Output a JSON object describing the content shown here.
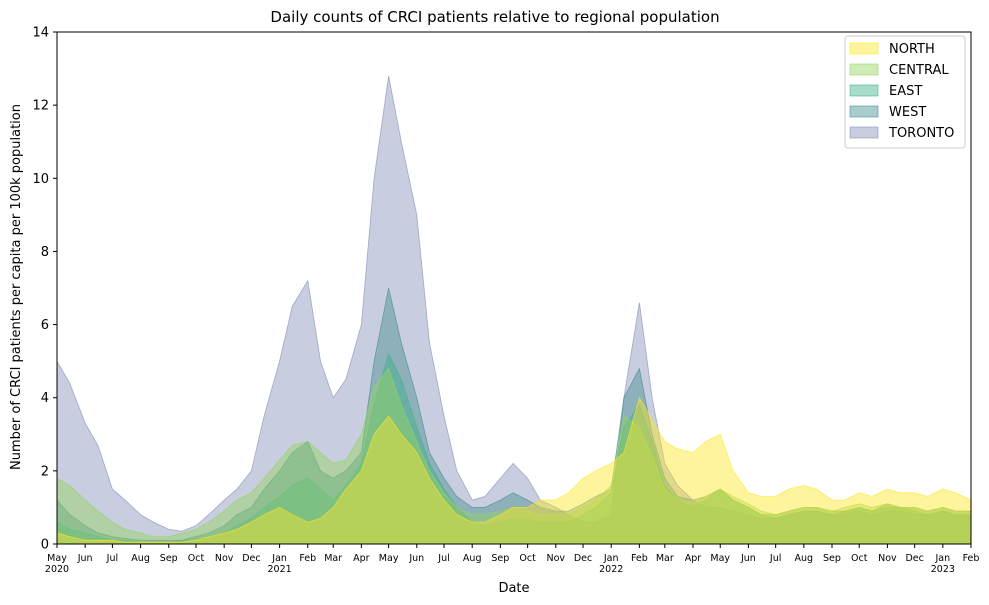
{
  "chart_data": {
    "type": "area",
    "title": "Daily counts of CRCI patients relative to regional population",
    "xlabel": "Date",
    "ylabel": "Number of CRCI patients per capita per 100k population",
    "ylim": [
      0,
      14
    ],
    "yticks": [
      "0",
      "2",
      "4",
      "6",
      "8",
      "10",
      "12",
      "14"
    ],
    "xlim": [
      "2020-05-01",
      "2023-02-01"
    ],
    "xticks": [
      {
        "date": "2020-05-01",
        "label": "May",
        "year": "2020"
      },
      {
        "date": "2020-06-01",
        "label": "Jun",
        "year": ""
      },
      {
        "date": "2020-07-01",
        "label": "Jul",
        "year": ""
      },
      {
        "date": "2020-08-01",
        "label": "Aug",
        "year": ""
      },
      {
        "date": "2020-09-01",
        "label": "Sep",
        "year": ""
      },
      {
        "date": "2020-10-01",
        "label": "Oct",
        "year": ""
      },
      {
        "date": "2020-11-01",
        "label": "Nov",
        "year": ""
      },
      {
        "date": "2020-12-01",
        "label": "Dec",
        "year": ""
      },
      {
        "date": "2021-01-01",
        "label": "Jan",
        "year": "2021"
      },
      {
        "date": "2021-02-01",
        "label": "Feb",
        "year": ""
      },
      {
        "date": "2021-03-01",
        "label": "Mar",
        "year": ""
      },
      {
        "date": "2021-04-01",
        "label": "Apr",
        "year": ""
      },
      {
        "date": "2021-05-01",
        "label": "May",
        "year": ""
      },
      {
        "date": "2021-06-01",
        "label": "Jun",
        "year": ""
      },
      {
        "date": "2021-07-01",
        "label": "Jul",
        "year": ""
      },
      {
        "date": "2021-08-01",
        "label": "Aug",
        "year": ""
      },
      {
        "date": "2021-09-01",
        "label": "Sep",
        "year": ""
      },
      {
        "date": "2021-10-01",
        "label": "Oct",
        "year": ""
      },
      {
        "date": "2021-11-01",
        "label": "Nov",
        "year": ""
      },
      {
        "date": "2021-12-01",
        "label": "Dec",
        "year": ""
      },
      {
        "date": "2022-01-01",
        "label": "Jan",
        "year": "2022"
      },
      {
        "date": "2022-02-01",
        "label": "Feb",
        "year": ""
      },
      {
        "date": "2022-03-01",
        "label": "Mar",
        "year": ""
      },
      {
        "date": "2022-04-01",
        "label": "Apr",
        "year": ""
      },
      {
        "date": "2022-05-01",
        "label": "May",
        "year": ""
      },
      {
        "date": "2022-06-01",
        "label": "Jun",
        "year": ""
      },
      {
        "date": "2022-07-01",
        "label": "Jul",
        "year": ""
      },
      {
        "date": "2022-08-01",
        "label": "Aug",
        "year": ""
      },
      {
        "date": "2022-09-01",
        "label": "Sep",
        "year": ""
      },
      {
        "date": "2022-10-01",
        "label": "Oct",
        "year": ""
      },
      {
        "date": "2022-11-01",
        "label": "Nov",
        "year": ""
      },
      {
        "date": "2022-12-01",
        "label": "Dec",
        "year": ""
      },
      {
        "date": "2023-01-01",
        "label": "Jan",
        "year": "2023"
      },
      {
        "date": "2023-02-01",
        "label": "Feb",
        "year": ""
      }
    ],
    "legend_position": "top-right",
    "grid": false,
    "series": [
      {
        "name": "TORONTO",
        "color": "#8591b8",
        "x": [
          "2020-05-01",
          "2020-05-15",
          "2020-06-01",
          "2020-06-15",
          "2020-07-01",
          "2020-07-15",
          "2020-08-01",
          "2020-08-15",
          "2020-09-01",
          "2020-09-15",
          "2020-10-01",
          "2020-10-15",
          "2020-11-01",
          "2020-11-15",
          "2020-12-01",
          "2020-12-15",
          "2021-01-01",
          "2021-01-15",
          "2021-02-01",
          "2021-02-15",
          "2021-03-01",
          "2021-03-15",
          "2021-04-01",
          "2021-04-15",
          "2021-05-01",
          "2021-05-15",
          "2021-06-01",
          "2021-06-15",
          "2021-07-01",
          "2021-07-15",
          "2021-08-01",
          "2021-08-15",
          "2021-09-01",
          "2021-09-15",
          "2021-10-01",
          "2021-10-15",
          "2021-11-01",
          "2021-11-15",
          "2021-12-01",
          "2021-12-15",
          "2022-01-01",
          "2022-01-15",
          "2022-02-01",
          "2022-02-15",
          "2022-03-01",
          "2022-03-15",
          "2022-04-01",
          "2022-04-15",
          "2022-05-01",
          "2022-05-15",
          "2022-06-01",
          "2022-06-15",
          "2022-07-01",
          "2022-07-15",
          "2022-08-01",
          "2022-08-15",
          "2022-09-01",
          "2022-09-15",
          "2022-10-01",
          "2022-10-15",
          "2022-11-01",
          "2022-11-15",
          "2022-12-01",
          "2022-12-15",
          "2023-01-01",
          "2023-01-15",
          "2023-02-01"
        ],
        "values": [
          5.0,
          4.4,
          3.3,
          2.7,
          1.5,
          1.2,
          0.8,
          0.6,
          0.4,
          0.35,
          0.5,
          0.8,
          1.2,
          1.5,
          2.0,
          3.5,
          5.0,
          6.5,
          7.2,
          5.0,
          4.0,
          4.5,
          6.0,
          10.0,
          12.8,
          11.0,
          9.0,
          5.5,
          3.5,
          2.0,
          1.2,
          1.3,
          1.8,
          2.2,
          1.8,
          1.2,
          1.0,
          0.8,
          0.6,
          0.6,
          0.8,
          4.0,
          6.6,
          4.0,
          2.2,
          1.6,
          1.2,
          1.0,
          1.0,
          0.9,
          0.8,
          0.7,
          0.7,
          0.8,
          0.9,
          0.9,
          0.8,
          0.9,
          0.9,
          0.8,
          0.9,
          0.9,
          0.8,
          0.8,
          0.9,
          0.8,
          0.8
        ]
      },
      {
        "name": "WEST",
        "color": "#448f8f",
        "x": [
          "2020-05-01",
          "2020-05-15",
          "2020-06-01",
          "2020-06-15",
          "2020-07-01",
          "2020-07-15",
          "2020-08-01",
          "2020-08-15",
          "2020-09-01",
          "2020-09-15",
          "2020-10-01",
          "2020-10-15",
          "2020-11-01",
          "2020-11-15",
          "2020-12-01",
          "2020-12-15",
          "2021-01-01",
          "2021-01-15",
          "2021-02-01",
          "2021-02-15",
          "2021-03-01",
          "2021-03-15",
          "2021-04-01",
          "2021-04-15",
          "2021-05-01",
          "2021-05-15",
          "2021-06-01",
          "2021-06-15",
          "2021-07-01",
          "2021-07-15",
          "2021-08-01",
          "2021-08-15",
          "2021-09-01",
          "2021-09-15",
          "2021-10-01",
          "2021-10-15",
          "2021-11-01",
          "2021-11-15",
          "2021-12-01",
          "2021-12-15",
          "2022-01-01",
          "2022-01-15",
          "2022-02-01",
          "2022-02-15",
          "2022-03-01",
          "2022-03-15",
          "2022-04-01",
          "2022-04-15",
          "2022-05-01",
          "2022-05-15",
          "2022-06-01",
          "2022-06-15",
          "2022-07-01",
          "2022-07-15",
          "2022-08-01",
          "2022-08-15",
          "2022-09-01",
          "2022-09-15",
          "2022-10-01",
          "2022-10-15",
          "2022-11-01",
          "2022-11-15",
          "2022-12-01",
          "2022-12-15",
          "2023-01-01",
          "2023-01-15",
          "2023-02-01"
        ],
        "values": [
          1.2,
          0.8,
          0.5,
          0.3,
          0.2,
          0.15,
          0.1,
          0.1,
          0.1,
          0.1,
          0.2,
          0.3,
          0.5,
          0.8,
          1.0,
          1.5,
          2.0,
          2.5,
          2.8,
          2.0,
          1.8,
          2.0,
          2.5,
          5.0,
          7.0,
          5.5,
          4.0,
          2.5,
          1.8,
          1.3,
          1.0,
          1.0,
          1.2,
          1.4,
          1.2,
          1.0,
          0.9,
          0.9,
          1.1,
          1.3,
          1.5,
          4.0,
          4.8,
          3.0,
          1.8,
          1.3,
          1.2,
          1.3,
          1.5,
          1.2,
          1.0,
          0.8,
          0.8,
          0.9,
          1.0,
          1.0,
          0.9,
          0.9,
          1.0,
          0.9,
          1.1,
          1.0,
          1.0,
          0.9,
          1.0,
          0.9,
          0.9
        ]
      },
      {
        "name": "EAST",
        "color": "#3fb28a",
        "x": [
          "2020-05-01",
          "2020-05-15",
          "2020-06-01",
          "2020-06-15",
          "2020-07-01",
          "2020-07-15",
          "2020-08-01",
          "2020-08-15",
          "2020-09-01",
          "2020-09-15",
          "2020-10-01",
          "2020-10-15",
          "2020-11-01",
          "2020-11-15",
          "2020-12-01",
          "2020-12-15",
          "2021-01-01",
          "2021-01-15",
          "2021-02-01",
          "2021-02-15",
          "2021-03-01",
          "2021-03-15",
          "2021-04-01",
          "2021-04-15",
          "2021-05-01",
          "2021-05-15",
          "2021-06-01",
          "2021-06-15",
          "2021-07-01",
          "2021-07-15",
          "2021-08-01",
          "2021-08-15",
          "2021-09-01",
          "2021-09-15",
          "2021-10-01",
          "2021-10-15",
          "2021-11-01",
          "2021-11-15",
          "2021-12-01",
          "2021-12-15",
          "2022-01-01",
          "2022-01-15",
          "2022-02-01",
          "2022-02-15",
          "2022-03-01",
          "2022-03-15",
          "2022-04-01",
          "2022-04-15",
          "2022-05-01",
          "2022-05-15",
          "2022-06-01",
          "2022-06-15",
          "2022-07-01",
          "2022-07-15",
          "2022-08-01",
          "2022-08-15",
          "2022-09-01",
          "2022-09-15",
          "2022-10-01",
          "2022-10-15",
          "2022-11-01",
          "2022-11-15",
          "2022-12-01",
          "2022-12-15",
          "2023-01-01",
          "2023-01-15",
          "2023-02-01"
        ],
        "values": [
          0.6,
          0.4,
          0.3,
          0.2,
          0.1,
          0.1,
          0.05,
          0.05,
          0.05,
          0.1,
          0.1,
          0.2,
          0.3,
          0.5,
          0.7,
          1.0,
          1.3,
          1.6,
          1.8,
          1.5,
          1.2,
          1.6,
          2.2,
          3.8,
          5.2,
          4.5,
          3.2,
          2.2,
          1.5,
          1.0,
          0.6,
          0.5,
          0.6,
          0.7,
          0.7,
          0.6,
          0.6,
          0.6,
          0.8,
          1.0,
          1.4,
          3.2,
          3.8,
          2.8,
          1.6,
          1.2,
          1.0,
          1.2,
          1.5,
          1.2,
          1.0,
          0.8,
          0.7,
          0.8,
          0.9,
          0.9,
          0.8,
          0.8,
          1.0,
          0.9,
          1.0,
          1.0,
          0.9,
          0.8,
          0.9,
          0.8,
          0.8
        ]
      },
      {
        "name": "CENTRAL",
        "color": "#94d45e",
        "x": [
          "2020-05-01",
          "2020-05-15",
          "2020-06-01",
          "2020-06-15",
          "2020-07-01",
          "2020-07-15",
          "2020-08-01",
          "2020-08-15",
          "2020-09-01",
          "2020-09-15",
          "2020-10-01",
          "2020-10-15",
          "2020-11-01",
          "2020-11-15",
          "2020-12-01",
          "2020-12-15",
          "2021-01-01",
          "2021-01-15",
          "2021-02-01",
          "2021-02-15",
          "2021-03-01",
          "2021-03-15",
          "2021-04-01",
          "2021-04-15",
          "2021-05-01",
          "2021-05-15",
          "2021-06-01",
          "2021-06-15",
          "2021-07-01",
          "2021-07-15",
          "2021-08-01",
          "2021-08-15",
          "2021-09-01",
          "2021-09-15",
          "2021-10-01",
          "2021-10-15",
          "2021-11-01",
          "2021-11-15",
          "2021-12-01",
          "2021-12-15",
          "2022-01-01",
          "2022-01-15",
          "2022-02-01",
          "2022-02-15",
          "2022-03-01",
          "2022-03-15",
          "2022-04-01",
          "2022-04-15",
          "2022-05-01",
          "2022-05-15",
          "2022-06-01",
          "2022-06-15",
          "2022-07-01",
          "2022-07-15",
          "2022-08-01",
          "2022-08-15",
          "2022-09-01",
          "2022-09-15",
          "2022-10-01",
          "2022-10-15",
          "2022-11-01",
          "2022-11-15",
          "2022-12-01",
          "2022-12-15",
          "2023-01-01",
          "2023-01-15",
          "2023-02-01"
        ],
        "values": [
          1.8,
          1.6,
          1.2,
          0.9,
          0.6,
          0.4,
          0.3,
          0.2,
          0.2,
          0.3,
          0.4,
          0.6,
          0.9,
          1.2,
          1.4,
          1.8,
          2.3,
          2.7,
          2.8,
          2.5,
          2.2,
          2.3,
          3.0,
          4.3,
          4.8,
          3.8,
          2.8,
          2.0,
          1.4,
          1.0,
          0.8,
          0.8,
          0.9,
          1.0,
          0.9,
          0.8,
          0.8,
          0.8,
          1.0,
          1.2,
          1.6,
          3.5,
          3.2,
          2.4,
          1.5,
          1.2,
          1.1,
          1.3,
          1.5,
          1.3,
          1.1,
          0.9,
          0.8,
          0.9,
          1.0,
          1.0,
          0.9,
          1.0,
          1.1,
          1.0,
          1.1,
          1.0,
          1.0,
          0.9,
          1.0,
          0.9,
          0.9
        ]
      },
      {
        "name": "NORTH",
        "color": "#fde725",
        "x": [
          "2020-05-01",
          "2020-05-15",
          "2020-06-01",
          "2020-06-15",
          "2020-07-01",
          "2020-07-15",
          "2020-08-01",
          "2020-08-15",
          "2020-09-01",
          "2020-09-15",
          "2020-10-01",
          "2020-10-15",
          "2020-11-01",
          "2020-11-15",
          "2020-12-01",
          "2020-12-15",
          "2021-01-01",
          "2021-01-15",
          "2021-02-01",
          "2021-02-15",
          "2021-03-01",
          "2021-03-15",
          "2021-04-01",
          "2021-04-15",
          "2021-05-01",
          "2021-05-15",
          "2021-06-01",
          "2021-06-15",
          "2021-07-01",
          "2021-07-15",
          "2021-08-01",
          "2021-08-15",
          "2021-09-01",
          "2021-09-15",
          "2021-10-01",
          "2021-10-15",
          "2021-11-01",
          "2021-11-15",
          "2021-12-01",
          "2021-12-15",
          "2022-01-01",
          "2022-01-15",
          "2022-02-01",
          "2022-02-15",
          "2022-03-01",
          "2022-03-15",
          "2022-04-01",
          "2022-04-15",
          "2022-05-01",
          "2022-05-15",
          "2022-06-01",
          "2022-06-15",
          "2022-07-01",
          "2022-07-15",
          "2022-08-01",
          "2022-08-15",
          "2022-09-01",
          "2022-09-15",
          "2022-10-01",
          "2022-10-15",
          "2022-11-01",
          "2022-11-15",
          "2022-12-01",
          "2022-12-15",
          "2023-01-01",
          "2023-01-15",
          "2023-02-01"
        ],
        "values": [
          0.3,
          0.2,
          0.1,
          0.1,
          0.1,
          0.05,
          0.05,
          0.05,
          0.05,
          0.05,
          0.1,
          0.2,
          0.3,
          0.4,
          0.6,
          0.8,
          1.0,
          0.8,
          0.6,
          0.7,
          1.0,
          1.5,
          2.0,
          3.0,
          3.5,
          3.0,
          2.5,
          1.8,
          1.2,
          0.8,
          0.6,
          0.6,
          0.8,
          1.0,
          1.0,
          1.2,
          1.2,
          1.4,
          1.8,
          2.0,
          2.2,
          2.5,
          4.0,
          3.4,
          2.8,
          2.6,
          2.5,
          2.8,
          3.0,
          2.0,
          1.4,
          1.3,
          1.3,
          1.5,
          1.6,
          1.5,
          1.2,
          1.2,
          1.4,
          1.3,
          1.5,
          1.4,
          1.4,
          1.3,
          1.5,
          1.4,
          1.2
        ]
      }
    ],
    "legend": [
      "NORTH",
      "CENTRAL",
      "EAST",
      "WEST",
      "TORONTO"
    ]
  }
}
